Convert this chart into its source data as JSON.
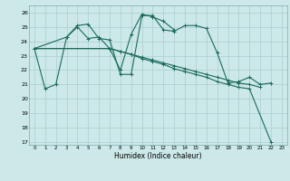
{
  "xlabel": "Humidex (Indice chaleur)",
  "ylabel": "",
  "bg_color": "#cce8e8",
  "line_color": "#1a6b5a",
  "grid_color": "#aacfcf",
  "ylim": [
    16.8,
    26.5
  ],
  "xlim": [
    -0.5,
    23.5
  ],
  "yticks": [
    17,
    18,
    19,
    20,
    21,
    22,
    23,
    24,
    25,
    26
  ],
  "xticks": [
    0,
    1,
    2,
    3,
    4,
    5,
    6,
    7,
    8,
    9,
    10,
    11,
    12,
    13,
    14,
    15,
    16,
    17,
    18,
    19,
    20,
    21,
    22,
    23
  ],
  "series": [
    [
      23.5,
      20.7,
      21.0,
      24.3,
      25.1,
      25.2,
      24.2,
      24.1,
      21.7,
      21.7,
      25.8,
      25.8,
      24.8,
      24.7,
      25.1,
      25.1,
      24.9,
      23.2,
      21.1,
      21.2,
      21.5,
      21.0,
      21.1,
      null
    ],
    [
      23.5,
      null,
      null,
      24.3,
      25.0,
      24.2,
      24.3,
      23.5,
      22.0,
      24.5,
      25.9,
      25.7,
      25.4,
      24.8,
      null,
      null,
      null,
      null,
      null,
      null,
      null,
      null,
      null,
      null
    ],
    [
      23.5,
      null,
      null,
      null,
      null,
      null,
      null,
      23.5,
      23.3,
      23.1,
      22.9,
      22.7,
      22.5,
      22.3,
      22.1,
      21.9,
      21.7,
      21.5,
      21.3,
      21.1,
      21.0,
      20.8,
      null,
      null
    ],
    [
      23.5,
      null,
      null,
      null,
      null,
      null,
      null,
      23.5,
      23.3,
      23.1,
      22.8,
      22.6,
      22.4,
      22.1,
      21.9,
      21.7,
      21.5,
      21.2,
      21.0,
      20.8,
      20.7,
      null,
      17.0,
      null
    ]
  ]
}
